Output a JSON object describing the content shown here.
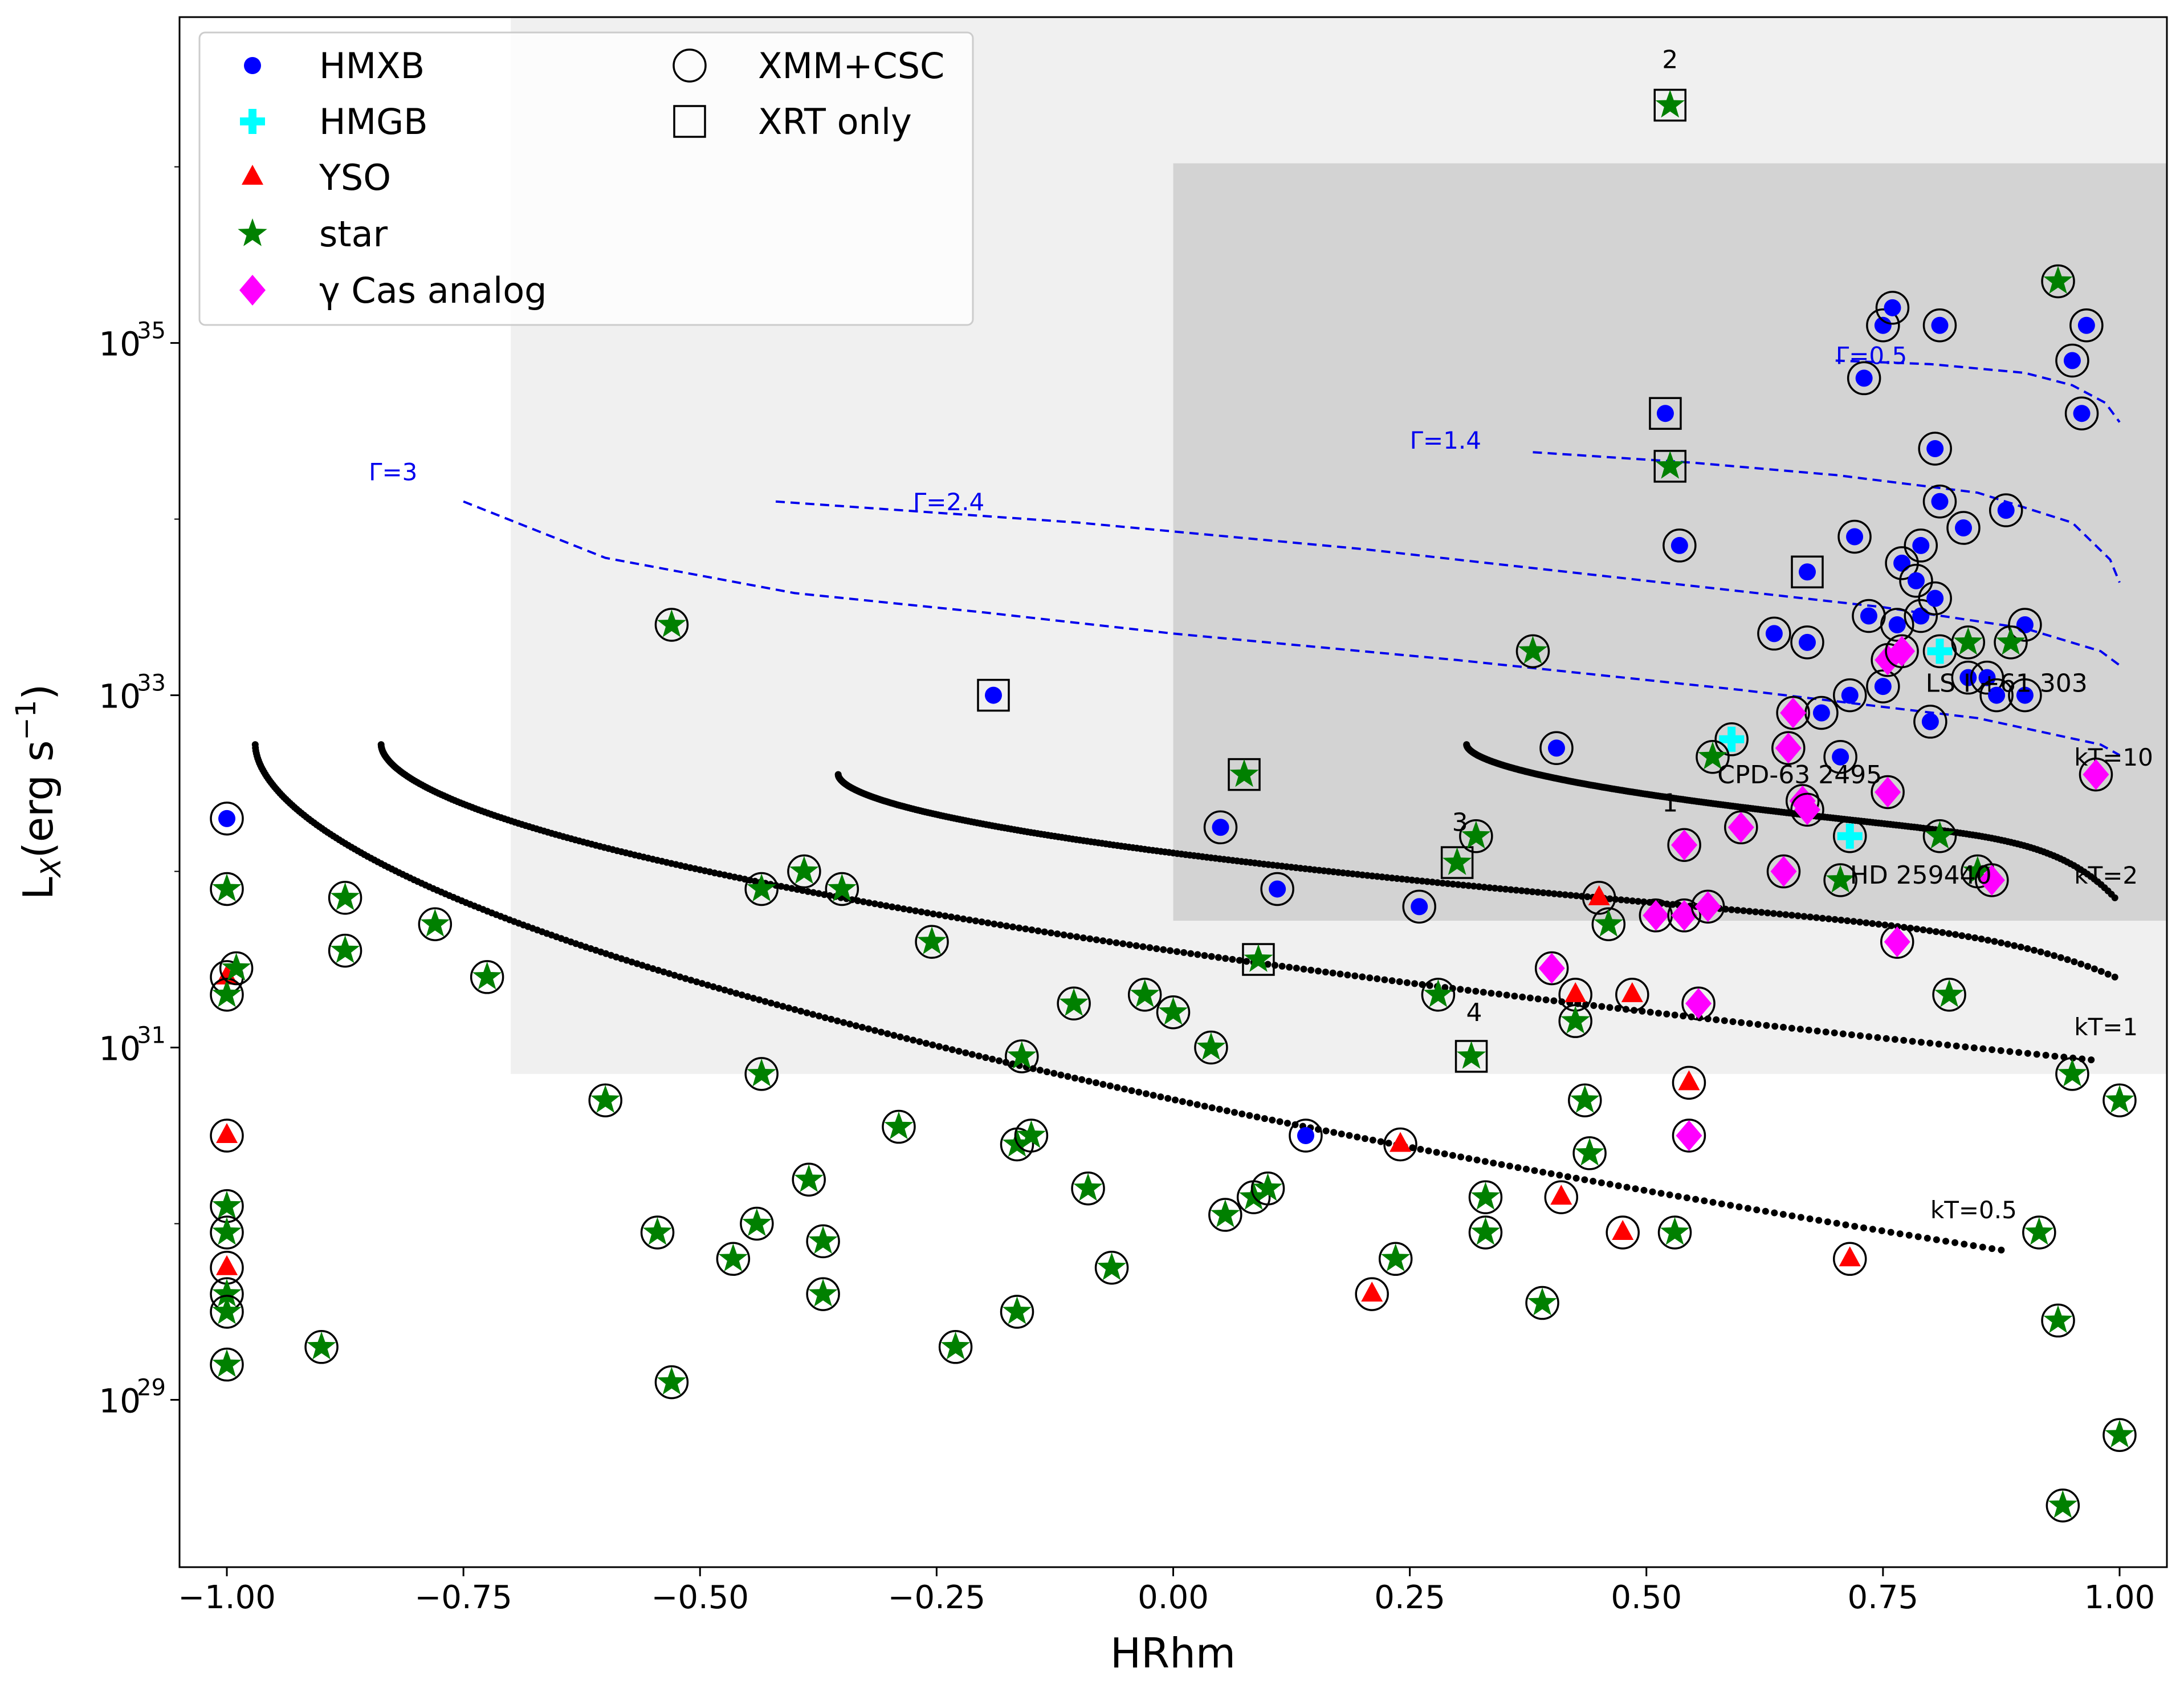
{
  "chart_data": {
    "type": "scatter",
    "title": "",
    "xlabel": "HRhm",
    "ylabel": "L$_X$(erg s$^{-1}$)",
    "ylabel_parts": {
      "main": "L",
      "sub": "X",
      "unit": "(erg s",
      "sup": "−1",
      "close": ")"
    },
    "xlim": [
      -1.05,
      1.05
    ],
    "ylim_log10": [
      28.05,
      36.85
    ],
    "y_scale": "log",
    "x_ticks": [
      -1.0,
      -0.75,
      -0.5,
      -0.25,
      0.0,
      0.25,
      0.5,
      0.75,
      1.0
    ],
    "x_tick_labels": [
      "−1.00",
      "−0.75",
      "−0.50",
      "−0.25",
      "0.00",
      "0.25",
      "0.50",
      "0.75",
      "1.00"
    ],
    "y_ticks_log10": [
      29,
      31,
      33,
      35
    ],
    "y_tick_labels": [
      {
        "base": "10",
        "exp": "29"
      },
      {
        "base": "10",
        "exp": "31"
      },
      {
        "base": "10",
        "exp": "33"
      },
      {
        "base": "10",
        "exp": "35"
      }
    ],
    "regions": [
      {
        "x": [
          -0.7,
          1.05
        ],
        "log10_y": [
          30.85,
          36.85
        ],
        "color": "#f0f0f0"
      },
      {
        "x": [
          0.0,
          1.05
        ],
        "log10_y": [
          31.72,
          36.02
        ],
        "color": "#d3d3d3"
      }
    ],
    "legend": {
      "location": "upper-left",
      "entries": [
        {
          "label": "HMXB",
          "marker": "circle",
          "color": "#0000ff"
        },
        {
          "label": "HMGB",
          "marker": "plus",
          "color": "#00ffff"
        },
        {
          "label": "YSO",
          "marker": "triangle",
          "color": "#ff0000"
        },
        {
          "label": "star",
          "marker": "star",
          "color": "#008000"
        },
        {
          "label": "γ Cas analog",
          "marker": "diamond",
          "color": "#ff00ff"
        },
        {
          "label": "XMM+CSC",
          "marker": "open-circle",
          "color": "#000000"
        },
        {
          "label": "XRT only",
          "marker": "open-square",
          "color": "#000000"
        }
      ]
    },
    "series": [
      {
        "name": "HMXB",
        "marker": "circle",
        "color": "#0000ff",
        "points": [
          [
            -1.0,
            32.3,
            "c"
          ],
          [
            -0.19,
            33.0,
            "s"
          ],
          [
            0.05,
            32.25,
            "c"
          ],
          [
            0.11,
            31.9,
            "c"
          ],
          [
            0.14,
            30.5,
            "c"
          ],
          [
            0.26,
            31.8,
            "c"
          ],
          [
            0.405,
            32.7,
            "c"
          ],
          [
            0.52,
            34.6,
            "s"
          ],
          [
            0.535,
            33.85,
            "c"
          ],
          [
            0.635,
            33.35,
            "c"
          ],
          [
            0.67,
            33.3,
            "c"
          ],
          [
            0.67,
            33.7,
            "s"
          ],
          [
            0.685,
            32.9,
            "c"
          ],
          [
            0.705,
            32.65,
            "c"
          ],
          [
            0.715,
            33.0,
            "c"
          ],
          [
            0.72,
            33.9,
            "c"
          ],
          [
            0.73,
            34.8,
            "c"
          ],
          [
            0.735,
            33.45,
            "c"
          ],
          [
            0.75,
            33.05,
            "c"
          ],
          [
            0.75,
            35.1,
            "c"
          ],
          [
            0.76,
            35.2,
            "c"
          ],
          [
            0.765,
            33.4,
            "c"
          ],
          [
            0.77,
            33.75,
            "c"
          ],
          [
            0.785,
            33.65,
            "c"
          ],
          [
            0.79,
            33.45,
            "c"
          ],
          [
            0.79,
            33.85,
            "c"
          ],
          [
            0.8,
            32.85,
            "c"
          ],
          [
            0.805,
            33.55,
            "c"
          ],
          [
            0.805,
            34.4,
            "c"
          ],
          [
            0.81,
            34.1,
            "c"
          ],
          [
            0.81,
            35.1,
            "c"
          ],
          [
            0.835,
            33.95,
            "c"
          ],
          [
            0.84,
            33.1,
            "c"
          ],
          [
            0.86,
            33.1,
            "c"
          ],
          [
            0.87,
            33.0,
            "c"
          ],
          [
            0.88,
            34.05,
            "c"
          ],
          [
            0.9,
            33.0,
            "c"
          ],
          [
            0.9,
            33.4,
            "c"
          ],
          [
            0.95,
            34.9,
            "c"
          ],
          [
            0.96,
            34.6,
            "c"
          ],
          [
            0.965,
            35.1,
            "c"
          ]
        ]
      },
      {
        "name": "HMGB",
        "marker": "plus",
        "color": "#00ffff",
        "points": [
          [
            0.59,
            32.75,
            "c"
          ],
          [
            0.715,
            32.2,
            "c"
          ],
          [
            0.81,
            33.25,
            "c"
          ]
        ]
      },
      {
        "name": "YSO",
        "marker": "triangle",
        "color": "#ff0000",
        "points": [
          [
            -1.0,
            31.4,
            "c"
          ],
          [
            -1.0,
            30.5,
            "c"
          ],
          [
            -1.0,
            29.75,
            "c"
          ],
          [
            0.21,
            29.6,
            "c"
          ],
          [
            0.24,
            30.45,
            "c"
          ],
          [
            0.41,
            30.15,
            "c"
          ],
          [
            0.425,
            31.3,
            "c"
          ],
          [
            0.45,
            31.85,
            "c"
          ],
          [
            0.475,
            29.95,
            "c"
          ],
          [
            0.485,
            31.3,
            "c"
          ],
          [
            0.545,
            30.8,
            "c"
          ],
          [
            0.715,
            29.8,
            "c"
          ]
        ]
      },
      {
        "name": "star",
        "marker": "star",
        "color": "#008000",
        "points": [
          [
            -1.0,
            31.9,
            "c"
          ],
          [
            -1.0,
            31.3,
            "c"
          ],
          [
            -1.0,
            30.1,
            "c"
          ],
          [
            -1.0,
            29.95,
            "c"
          ],
          [
            -1.0,
            29.6,
            "c"
          ],
          [
            -1.0,
            29.5,
            "c"
          ],
          [
            -1.0,
            29.2,
            "c"
          ],
          [
            -0.99,
            31.45,
            "c"
          ],
          [
            -0.9,
            29.3,
            "c"
          ],
          [
            -0.875,
            31.55,
            "c"
          ],
          [
            -0.875,
            31.85,
            "c"
          ],
          [
            -0.78,
            31.7,
            "c"
          ],
          [
            -0.725,
            31.4,
            "c"
          ],
          [
            -0.6,
            30.7,
            "c"
          ],
          [
            -0.545,
            29.95,
            "c"
          ],
          [
            -0.53,
            33.4,
            "c"
          ],
          [
            -0.53,
            29.1,
            "c"
          ],
          [
            -0.465,
            29.8,
            "c"
          ],
          [
            -0.44,
            30.0,
            "c"
          ],
          [
            -0.435,
            30.85,
            "c"
          ],
          [
            -0.435,
            31.9,
            "c"
          ],
          [
            -0.39,
            32.0,
            "c"
          ],
          [
            -0.385,
            30.25,
            "c"
          ],
          [
            -0.37,
            29.9,
            "c"
          ],
          [
            -0.37,
            29.6,
            "c"
          ],
          [
            -0.35,
            31.9,
            "c"
          ],
          [
            -0.29,
            30.55,
            "c"
          ],
          [
            -0.255,
            31.6,
            "c"
          ],
          [
            -0.23,
            29.3,
            "c"
          ],
          [
            -0.165,
            29.5,
            "c"
          ],
          [
            -0.165,
            30.45,
            "c"
          ],
          [
            -0.16,
            30.95,
            "c"
          ],
          [
            -0.15,
            30.5,
            "c"
          ],
          [
            -0.105,
            31.25,
            "c"
          ],
          [
            -0.09,
            30.2,
            "c"
          ],
          [
            -0.065,
            29.75,
            "c"
          ],
          [
            -0.03,
            31.3,
            "c"
          ],
          [
            0.0,
            31.2,
            "c"
          ],
          [
            0.04,
            31.0,
            "c"
          ],
          [
            0.055,
            30.05,
            "c"
          ],
          [
            0.075,
            32.55,
            "s"
          ],
          [
            0.085,
            30.15,
            "c"
          ],
          [
            0.09,
            31.5,
            "s"
          ],
          [
            0.1,
            30.2,
            "c"
          ],
          [
            0.235,
            29.8,
            "c"
          ],
          [
            0.28,
            31.3,
            "c"
          ],
          [
            0.3,
            32.05,
            "s"
          ],
          [
            0.315,
            30.95,
            "s"
          ],
          [
            0.32,
            32.2,
            "c"
          ],
          [
            0.33,
            29.95,
            "c"
          ],
          [
            0.33,
            30.15,
            "c"
          ],
          [
            0.38,
            33.25,
            "c"
          ],
          [
            0.39,
            29.55,
            "c"
          ],
          [
            0.425,
            31.15,
            "c"
          ],
          [
            0.435,
            30.7,
            "c"
          ],
          [
            0.44,
            30.4,
            "c"
          ],
          [
            0.46,
            31.7,
            "c"
          ],
          [
            0.525,
            36.35,
            "s"
          ],
          [
            0.525,
            34.3,
            "s"
          ],
          [
            0.53,
            29.95,
            "c"
          ],
          [
            0.57,
            32.65,
            "c"
          ],
          [
            0.705,
            31.95,
            "c"
          ],
          [
            0.81,
            32.2,
            "c"
          ],
          [
            0.82,
            31.3,
            "c"
          ],
          [
            0.84,
            33.3,
            "c"
          ],
          [
            0.85,
            32.0,
            "c"
          ],
          [
            0.885,
            33.3,
            "c"
          ],
          [
            0.915,
            29.95,
            "c"
          ],
          [
            0.935,
            35.35,
            "c"
          ],
          [
            0.935,
            29.45,
            "c"
          ],
          [
            0.94,
            28.4,
            "c"
          ],
          [
            0.95,
            30.85,
            "c"
          ],
          [
            1.0,
            30.7,
            "c"
          ],
          [
            1.0,
            28.8,
            "c"
          ]
        ]
      },
      {
        "name": "γ Cas analog",
        "marker": "diamond",
        "color": "#ff00ff",
        "points": [
          [
            0.4,
            31.45,
            "c"
          ],
          [
            0.51,
            31.75,
            "c"
          ],
          [
            0.54,
            31.75,
            "c"
          ],
          [
            0.54,
            32.15,
            "c"
          ],
          [
            0.545,
            30.5,
            "c"
          ],
          [
            0.555,
            31.25,
            "c"
          ],
          [
            0.565,
            31.8,
            "c"
          ],
          [
            0.6,
            32.25,
            "c"
          ],
          [
            0.645,
            32.0,
            "c"
          ],
          [
            0.65,
            32.7,
            "c"
          ],
          [
            0.655,
            32.9,
            "c"
          ],
          [
            0.665,
            32.4,
            "c"
          ],
          [
            0.67,
            32.35,
            "c"
          ],
          [
            0.755,
            32.45,
            "c"
          ],
          [
            0.755,
            33.2,
            "c"
          ],
          [
            0.765,
            31.6,
            "c"
          ],
          [
            0.77,
            33.25,
            "c"
          ],
          [
            0.865,
            31.95,
            "c"
          ],
          [
            0.975,
            32.55,
            "c"
          ]
        ]
      }
    ],
    "source_labels": [
      {
        "text": "LS I +61  303",
        "x": 0.795,
        "log10_y": 33.02
      },
      {
        "text": "CPD-63 2495",
        "x": 0.575,
        "log10_y": 32.5
      },
      {
        "text": "HD 259440",
        "x": 0.715,
        "log10_y": 31.93
      },
      {
        "text": "2",
        "x": 0.525,
        "log10_y": 36.56
      },
      {
        "text": "1",
        "x": 0.525,
        "log10_y": 32.34
      },
      {
        "text": "3",
        "x": 0.303,
        "log10_y": 32.23
      },
      {
        "text": "4",
        "x": 0.318,
        "log10_y": 31.15
      }
    ],
    "model_curves": {
      "powerlaw": [
        {
          "label": "Γ=0.5",
          "label_x": 0.7,
          "label_log10_y": 34.88,
          "x": [
            0.7,
            0.8,
            0.9,
            0.95,
            0.985,
            1.0
          ],
          "log10_y": [
            34.9,
            34.88,
            34.83,
            34.76,
            34.66,
            34.55
          ]
        },
        {
          "label": "Γ=1.4",
          "label_x": 0.25,
          "label_log10_y": 34.4,
          "x": [
            0.38,
            0.55,
            0.7,
            0.85,
            0.95,
            0.99,
            1.0
          ],
          "log10_y": [
            34.38,
            34.32,
            34.25,
            34.15,
            33.98,
            33.77,
            33.64
          ]
        },
        {
          "label": "Γ=2.4",
          "label_x": -0.275,
          "label_log10_y": 34.05,
          "x": [
            -0.42,
            -0.1,
            0.2,
            0.5,
            0.75,
            0.9,
            0.98,
            1.0
          ],
          "log10_y": [
            34.1,
            33.98,
            33.83,
            33.65,
            33.5,
            33.38,
            33.25,
            33.17
          ]
        },
        {
          "label": "Γ=3",
          "label_x": -0.85,
          "label_log10_y": 34.22,
          "x": [
            -0.75,
            -0.6,
            -0.4,
            -0.2,
            0.0,
            0.3,
            0.6,
            0.85,
            0.98,
            1.0
          ],
          "log10_y": [
            34.1,
            33.78,
            33.58,
            33.47,
            33.35,
            33.2,
            33.03,
            32.87,
            32.72,
            32.66
          ]
        }
      ],
      "thermal": [
        {
          "label": "kT=10",
          "label_x": 0.952,
          "label_log10_y": 32.6,
          "x0": 0.31,
          "x1": 0.995,
          "y0": 32.72,
          "y1": 32.15,
          "drop": 0.3
        },
        {
          "label": "kT=2",
          "label_x": 0.952,
          "label_log10_y": 31.93,
          "x0": -0.354,
          "x1": 0.995,
          "y0": 32.55,
          "y1": 31.62,
          "drop": 0.22
        },
        {
          "label": "kT=1",
          "label_x": 0.952,
          "label_log10_y": 31.07,
          "x0": -0.837,
          "x1": 0.97,
          "y0": 32.72,
          "y1": 30.93,
          "drop": 0.0
        },
        {
          "label": "kT=0.5",
          "label_x": 0.8,
          "label_log10_y": 30.03,
          "x0": -0.97,
          "x1": 0.875,
          "y0": 32.72,
          "y1": 29.85,
          "drop": 0.0
        }
      ]
    }
  }
}
